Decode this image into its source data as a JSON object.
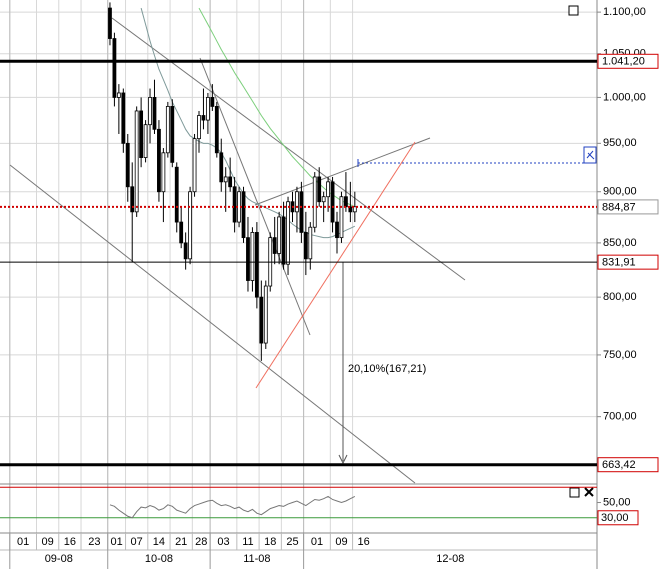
{
  "chart_data": {
    "type": "candlestick",
    "log_scale": true,
    "xlim": [
      -24.7,
      109.4
    ],
    "ylim": [
      650,
      1115
    ],
    "yticks": [
      {
        "value": 1100,
        "label": "1.100,00"
      },
      {
        "value": 1050,
        "label": "1.050,00"
      },
      {
        "value": 1000,
        "label": "1.000,00"
      },
      {
        "value": 950,
        "label": "950,00"
      },
      {
        "value": 900,
        "label": "900,00"
      },
      {
        "value": 850,
        "label": "850,00"
      },
      {
        "value": 800,
        "label": "800,00"
      },
      {
        "value": 750,
        "label": "750,00"
      },
      {
        "value": 700,
        "label": "700,00"
      }
    ],
    "xticks": [
      {
        "value": -22,
        "label": "01"
      },
      {
        "value": -16,
        "label": "09"
      },
      {
        "value": -11,
        "label": "16"
      },
      {
        "value": -6,
        "label": "23"
      },
      {
        "value": 0,
        "label": "01"
      },
      {
        "value": 4,
        "label": "07"
      },
      {
        "value": 9,
        "label": "14"
      },
      {
        "value": 14,
        "label": "21"
      },
      {
        "value": 19,
        "label": "28"
      },
      {
        "value": 23,
        "label": "03"
      },
      {
        "value": 29,
        "label": "11"
      },
      {
        "value": 34,
        "label": "18"
      },
      {
        "value": 39,
        "label": "25"
      },
      {
        "value": 44,
        "label": "01"
      },
      {
        "value": 50,
        "label": "09"
      },
      {
        "value": 55,
        "label": "16"
      }
    ],
    "months": [
      {
        "value": -22.5,
        "label": "09-08"
      },
      {
        "value": -0.5,
        "label": "10-08"
      },
      {
        "value": 22.5,
        "label": "11-08"
      },
      {
        "value": 43.5,
        "label": "12-08"
      }
    ],
    "grid": true,
    "candles": {
      "open": [
        1105,
        1068,
        1000,
        1005,
        950,
        905,
        880,
        985,
        935,
        970,
        1000,
        965,
        900,
        940,
        990,
        925,
        870,
        850,
        835,
        900,
        955,
        980,
        975,
        1000,
        990,
        940,
        910,
        915,
        905,
        870,
        900,
        855,
        815,
        860,
        800,
        760,
        810,
        855,
        840,
        875,
        830,
        890,
        880,
        900,
        860,
        835,
        865,
        915,
        890,
        895,
        910,
        870,
        855,
        895,
        885,
        880
      ],
      "high": [
        1112,
        1075,
        1015,
        1010,
        960,
        930,
        990,
        1000,
        975,
        1010,
        1020,
        975,
        945,
        995,
        998,
        930,
        885,
        860,
        905,
        960,
        985,
        1010,
        1005,
        1015,
        995,
        955,
        925,
        935,
        915,
        905,
        905,
        875,
        865,
        870,
        815,
        815,
        860,
        875,
        880,
        890,
        895,
        900,
        905,
        910,
        880,
        870,
        920,
        925,
        900,
        915,
        915,
        880,
        900,
        920,
        910,
        900
      ],
      "low": [
        1060,
        990,
        960,
        940,
        890,
        832,
        875,
        925,
        930,
        950,
        960,
        890,
        870,
        935,
        925,
        860,
        845,
        825,
        830,
        895,
        940,
        965,
        960,
        985,
        935,
        900,
        880,
        900,
        860,
        865,
        850,
        805,
        805,
        790,
        745,
        755,
        805,
        830,
        830,
        825,
        820,
        870,
        860,
        850,
        820,
        825,
        860,
        885,
        870,
        880,
        860,
        840,
        850,
        880,
        870,
        870
      ],
      "close": [
        1068,
        1000,
        1005,
        950,
        905,
        880,
        985,
        935,
        970,
        1000,
        965,
        900,
        940,
        990,
        930,
        870,
        850,
        835,
        900,
        955,
        980,
        975,
        1000,
        990,
        940,
        910,
        915,
        905,
        870,
        900,
        855,
        815,
        860,
        800,
        760,
        810,
        855,
        840,
        875,
        830,
        890,
        880,
        900,
        860,
        835,
        865,
        915,
        890,
        895,
        910,
        870,
        855,
        895,
        885,
        880,
        885
      ]
    },
    "series": [
      {
        "color": "#7ccf7c",
        "values": [
          null,
          null,
          null,
          null,
          null,
          null,
          null,
          null,
          null,
          null,
          null,
          null,
          null,
          null,
          null,
          null,
          null,
          null,
          null,
          null,
          1105,
          1095,
          1085,
          1075,
          1065,
          1055,
          1046,
          1037,
          1028,
          1020,
          1012,
          1004,
          996,
          988,
          980,
          973,
          966,
          960,
          954,
          948,
          942,
          936,
          931,
          926,
          921,
          916,
          912,
          908,
          904,
          900,
          897,
          894,
          891,
          889,
          887,
          885
        ]
      },
      {
        "color": "#7f9a9a",
        "values": [
          null,
          null,
          null,
          null,
          null,
          null,
          null,
          1105,
          1085,
          1065,
          1048,
          1032,
          1020,
          1008,
          995,
          985,
          975,
          965,
          958,
          955,
          952,
          950,
          950,
          948,
          945,
          940,
          932,
          922,
          912,
          905,
          898,
          893,
          890,
          888,
          886,
          884,
          882,
          880,
          878,
          875,
          872,
          868,
          865,
          862,
          860,
          858,
          857,
          856,
          855,
          855,
          856,
          858,
          860,
          862,
          864,
          866
        ]
      }
    ],
    "levels": [
      {
        "value": 1041.2,
        "label": "1.041,20",
        "color": "#d00000",
        "style": "thick"
      },
      {
        "value": 884.87,
        "label": "884,87",
        "color": "#d00000",
        "style": "dotted"
      },
      {
        "value": 831.91,
        "label": "831,91",
        "color": "#d00000",
        "style": "thin"
      },
      {
        "value": 663.42,
        "label": "663,42",
        "color": "#d00000",
        "style": "thick"
      }
    ],
    "annotation": "20,10%(167,21)",
    "oscillator": {
      "ylim": [
        10,
        73
      ],
      "yticks": [
        {
          "value": 50,
          "label": "50,00"
        }
      ],
      "upper_level": 70,
      "lower_level": {
        "value": 30,
        "label": "30,00"
      },
      "values": [
        47,
        45,
        40,
        36,
        32,
        30,
        38,
        44,
        43,
        46,
        44,
        40,
        42,
        47,
        45,
        40,
        38,
        36,
        42,
        46,
        48,
        50,
        52,
        53,
        49,
        46,
        47,
        45,
        42,
        44,
        40,
        38,
        41,
        36,
        34,
        38,
        42,
        44,
        46,
        45,
        48,
        50,
        52,
        49,
        46,
        50,
        54,
        53,
        55,
        58,
        54,
        52,
        50,
        52,
        55,
        58
      ]
    }
  }
}
